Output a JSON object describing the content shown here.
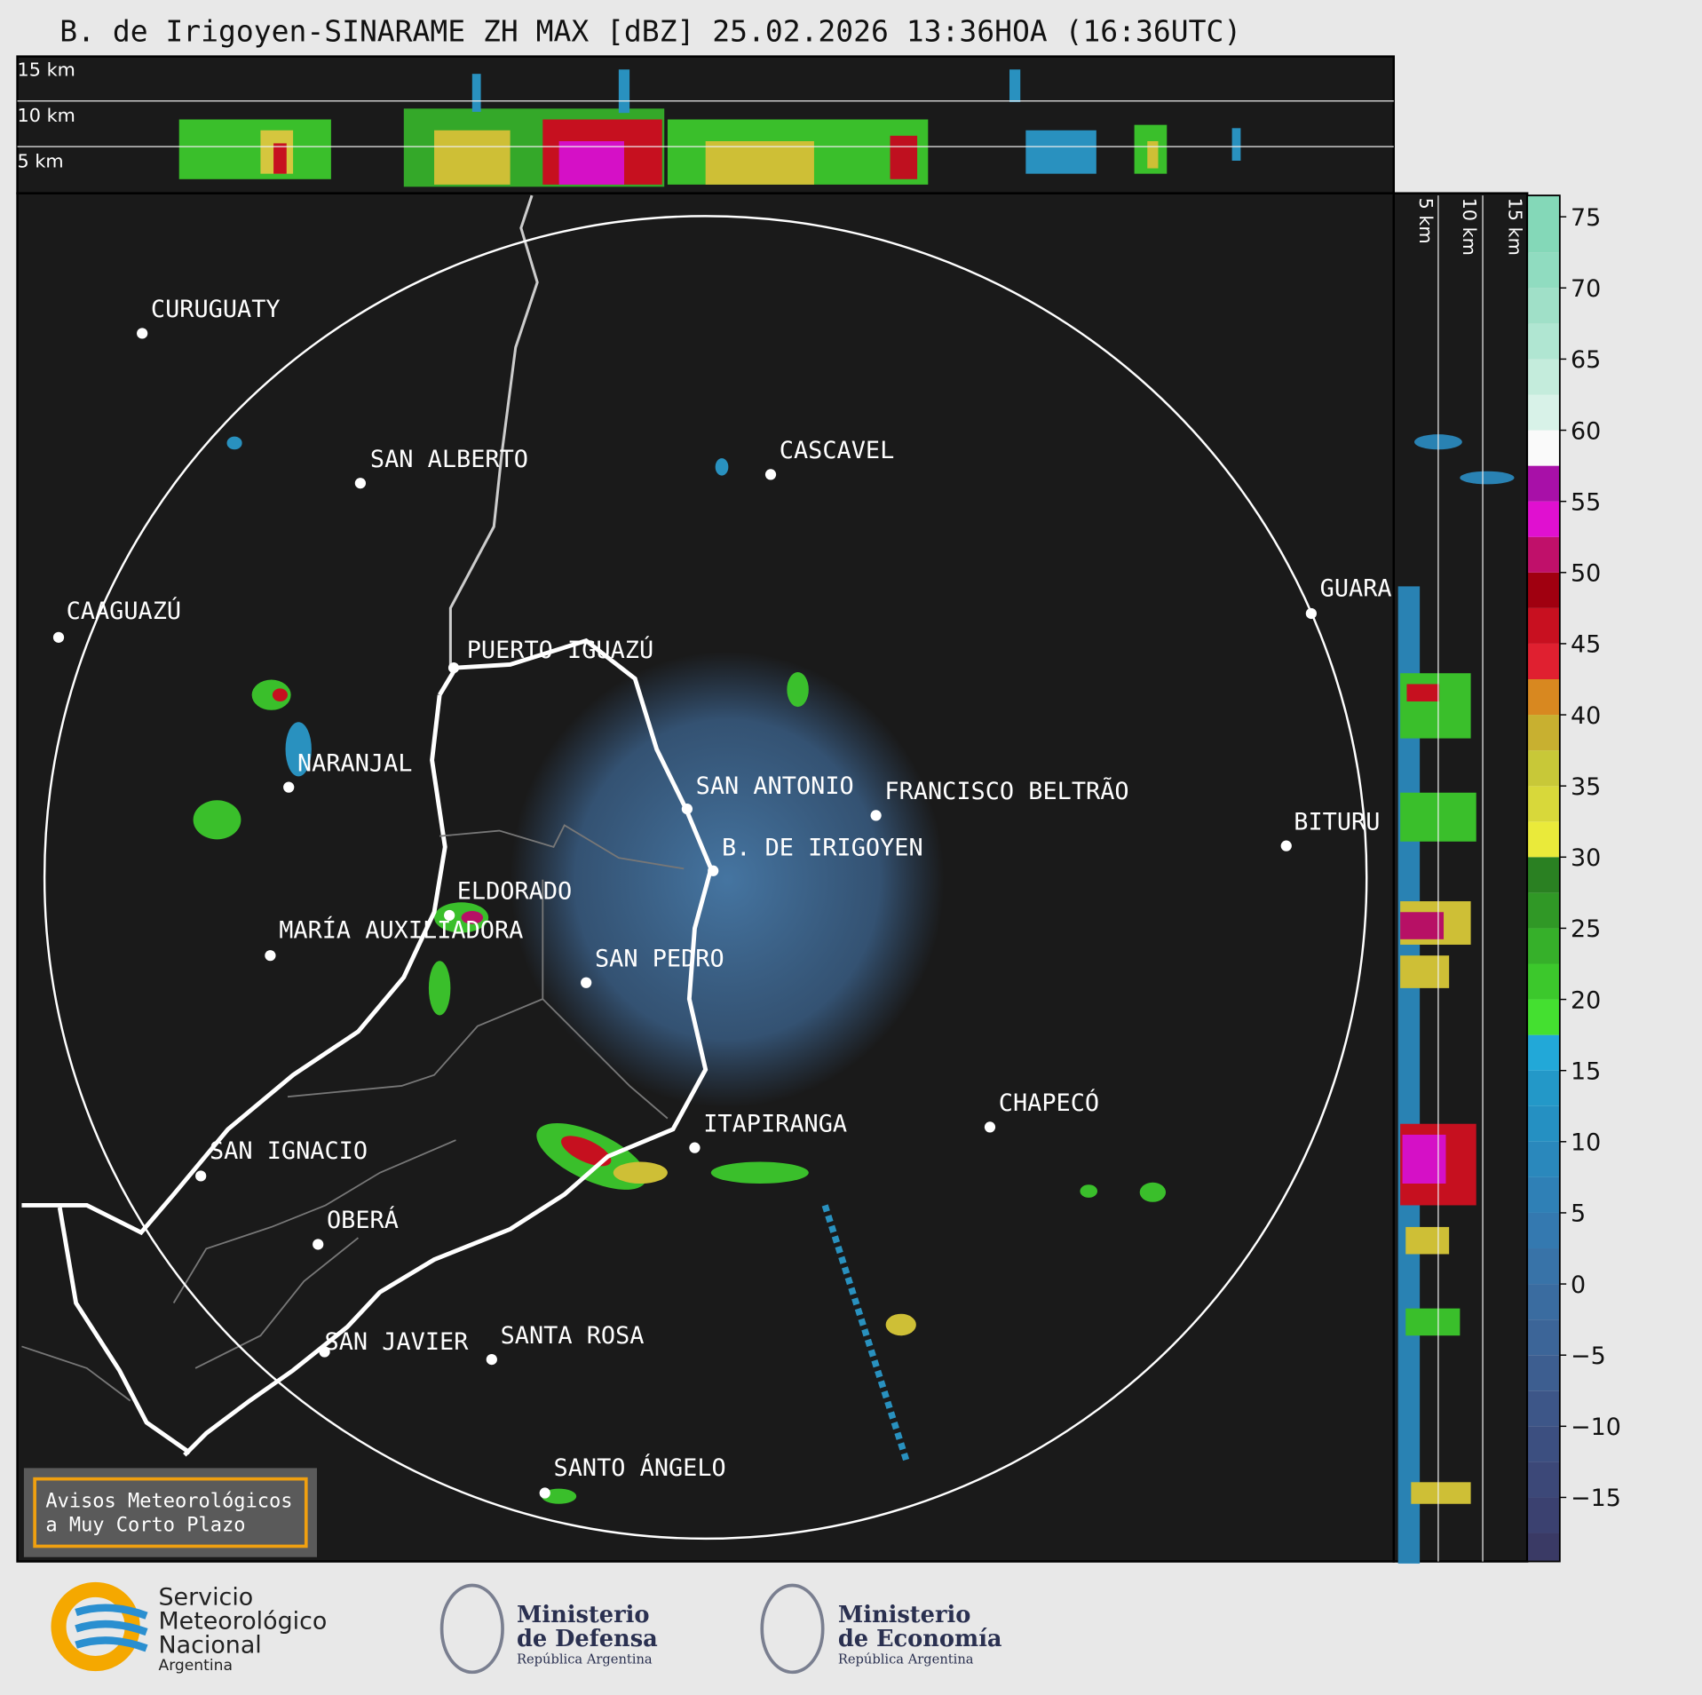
{
  "header": {
    "title": "B. de Irigoyen-SINARAME ZH MAX [dBZ] 25.02.2026 13:36HOA (16:36UTC)"
  },
  "top_panel": {
    "height_labels": [
      "15 km",
      "10 km",
      "5 km"
    ]
  },
  "side_panel": {
    "height_labels": [
      "5 km",
      "10 km",
      "15 km"
    ]
  },
  "map": {
    "cities": [
      "CURUGUATY",
      "SAN ALBERTO",
      "CASCAVEL",
      "CAAGUAZÚ",
      "GUARA",
      "PUERTO IGUAZÚ",
      "NARANJAL",
      "SAN ANTONIO",
      "FRANCISCO BELTRÃO",
      "BITURU",
      "B. DE IRIGOYEN",
      "ELDORADO",
      "MARÍA AUXILIADORA",
      "SAN PEDRO",
      "CHAPECÓ",
      "ITAPIRANGA",
      "SAN IGNACIO",
      "OBERÁ",
      "SAN JAVIER",
      "SANTA ROSA",
      "SANTO ÁNGELO"
    ],
    "notice": [
      "Avisos Meteorológicos",
      "a Muy Corto Plazo"
    ]
  },
  "colorbar": {
    "lim": [
      -19.5,
      76.5
    ],
    "ticks": [
      75,
      70,
      65,
      60,
      55,
      50,
      45,
      40,
      35,
      30,
      25,
      20,
      15,
      10,
      5,
      0,
      {
        "value": -5,
        "label": "−5"
      },
      {
        "value": -10,
        "label": "−10"
      },
      {
        "value": -15,
        "label": "−15"
      }
    ],
    "bands": [
      {
        "min": -19.5,
        "color": "#3a3a65"
      },
      {
        "min": -17.5,
        "color": "#3b4170"
      },
      {
        "min": -15,
        "color": "#3c4878"
      },
      {
        "min": -12.5,
        "color": "#3c4f80"
      },
      {
        "min": -10,
        "color": "#3d5688"
      },
      {
        "min": -7.5,
        "color": "#3d5e90"
      },
      {
        "min": -5,
        "color": "#3c6598"
      },
      {
        "min": -2.5,
        "color": "#3a6ca0"
      },
      {
        "min": 0,
        "color": "#3873a8"
      },
      {
        "min": 2.5,
        "color": "#3479b0"
      },
      {
        "min": 5,
        "color": "#2f80b6"
      },
      {
        "min": 7.5,
        "color": "#2a88bc"
      },
      {
        "min": 10,
        "color": "#2590c2"
      },
      {
        "min": 12.5,
        "color": "#2398c8"
      },
      {
        "min": 15,
        "color": "#22a8d8"
      },
      {
        "min": 17.5,
        "color": "#44e030"
      },
      {
        "min": 20,
        "color": "#3cc82c"
      },
      {
        "min": 22.5,
        "color": "#36b02a"
      },
      {
        "min": 25,
        "color": "#309826"
      },
      {
        "min": 27.5,
        "color": "#2a8022"
      },
      {
        "min": 30,
        "color": "#eaea3a"
      },
      {
        "min": 32.5,
        "color": "#d8d83a"
      },
      {
        "min": 35,
        "color": "#c8c838"
      },
      {
        "min": 37.5,
        "color": "#c8b030"
      },
      {
        "min": 40,
        "color": "#d88820"
      },
      {
        "min": 42.5,
        "color": "#e02030"
      },
      {
        "min": 45,
        "color": "#c81020"
      },
      {
        "min": 47.5,
        "color": "#a00010"
      },
      {
        "min": 50,
        "color": "#c0106a"
      },
      {
        "min": 52.5,
        "color": "#e010d0"
      },
      {
        "min": 55,
        "color": "#a810a8"
      },
      {
        "min": 57.5,
        "color": "#fafafa"
      },
      {
        "min": 60,
        "color": "#d8f2e8"
      },
      {
        "min": 62.5,
        "color": "#c4ecdc"
      },
      {
        "min": 65,
        "color": "#b0e6d2"
      },
      {
        "min": 67.5,
        "color": "#a0e0c8"
      },
      {
        "min": 70,
        "color": "#90dcc0"
      },
      {
        "min": 72.5,
        "color": "#84d8b8"
      }
    ]
  },
  "footer": {
    "smn": [
      "Servicio",
      "Meteorológico",
      "Nacional",
      "Argentina"
    ],
    "defensa": [
      "Ministerio",
      "de Defensa",
      "República Argentina"
    ],
    "economia": [
      "Ministerio",
      "de Economía",
      "República Argentina"
    ]
  }
}
